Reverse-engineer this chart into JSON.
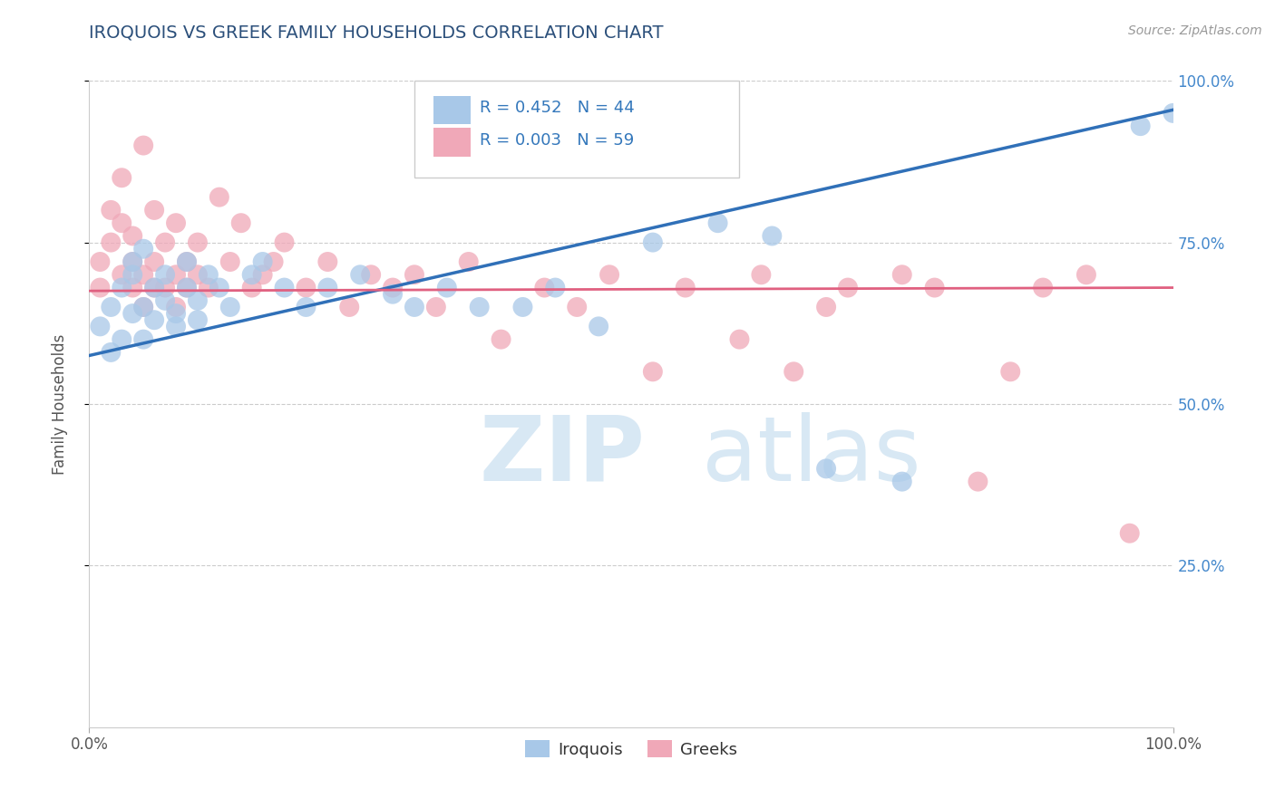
{
  "title": "IROQUOIS VS GREEK FAMILY HOUSEHOLDS CORRELATION CHART",
  "source": "Source: ZipAtlas.com",
  "ylabel": "Family Households",
  "xlim": [
    0,
    1.0
  ],
  "ylim": [
    0,
    1.0
  ],
  "blue_R": 0.452,
  "blue_N": 44,
  "pink_R": 0.003,
  "pink_N": 59,
  "iroquois_color": "#a8c8e8",
  "greeks_color": "#f0a8b8",
  "blue_line_color": "#3070b8",
  "pink_line_color": "#e06080",
  "watermark_color": "#d8e8f4",
  "title_color": "#2b4f7a",
  "legend_R_color": "#3377bb",
  "blue_line_slope": 0.38,
  "blue_line_intercept": 0.575,
  "pink_line_slope": 0.005,
  "pink_line_intercept": 0.675,
  "iroquois_x": [
    0.01,
    0.02,
    0.02,
    0.03,
    0.03,
    0.04,
    0.04,
    0.04,
    0.05,
    0.05,
    0.05,
    0.06,
    0.06,
    0.07,
    0.07,
    0.08,
    0.08,
    0.09,
    0.09,
    0.1,
    0.1,
    0.11,
    0.12,
    0.13,
    0.15,
    0.16,
    0.18,
    0.2,
    0.22,
    0.25,
    0.28,
    0.3,
    0.33,
    0.36,
    0.4,
    0.43,
    0.47,
    0.52,
    0.58,
    0.63,
    0.68,
    0.75,
    0.97,
    1.0
  ],
  "iroquois_y": [
    0.62,
    0.65,
    0.58,
    0.6,
    0.68,
    0.64,
    0.7,
    0.72,
    0.6,
    0.65,
    0.74,
    0.63,
    0.68,
    0.66,
    0.7,
    0.64,
    0.62,
    0.68,
    0.72,
    0.66,
    0.63,
    0.7,
    0.68,
    0.65,
    0.7,
    0.72,
    0.68,
    0.65,
    0.68,
    0.7,
    0.67,
    0.65,
    0.68,
    0.65,
    0.65,
    0.68,
    0.62,
    0.75,
    0.78,
    0.76,
    0.4,
    0.38,
    0.93,
    0.95
  ],
  "greeks_x": [
    0.01,
    0.01,
    0.02,
    0.02,
    0.03,
    0.03,
    0.03,
    0.04,
    0.04,
    0.04,
    0.05,
    0.05,
    0.05,
    0.06,
    0.06,
    0.06,
    0.07,
    0.07,
    0.08,
    0.08,
    0.08,
    0.09,
    0.09,
    0.1,
    0.1,
    0.11,
    0.12,
    0.13,
    0.14,
    0.15,
    0.16,
    0.17,
    0.18,
    0.2,
    0.22,
    0.24,
    0.26,
    0.28,
    0.3,
    0.32,
    0.35,
    0.38,
    0.42,
    0.45,
    0.48,
    0.52,
    0.55,
    0.6,
    0.62,
    0.65,
    0.68,
    0.7,
    0.75,
    0.78,
    0.82,
    0.85,
    0.88,
    0.92,
    0.96
  ],
  "greeks_y": [
    0.68,
    0.72,
    0.75,
    0.8,
    0.7,
    0.78,
    0.85,
    0.68,
    0.72,
    0.76,
    0.65,
    0.7,
    0.9,
    0.68,
    0.72,
    0.8,
    0.68,
    0.75,
    0.65,
    0.7,
    0.78,
    0.68,
    0.72,
    0.7,
    0.75,
    0.68,
    0.82,
    0.72,
    0.78,
    0.68,
    0.7,
    0.72,
    0.75,
    0.68,
    0.72,
    0.65,
    0.7,
    0.68,
    0.7,
    0.65,
    0.72,
    0.6,
    0.68,
    0.65,
    0.7,
    0.55,
    0.68,
    0.6,
    0.7,
    0.55,
    0.65,
    0.68,
    0.7,
    0.68,
    0.38,
    0.55,
    0.68,
    0.7,
    0.3
  ]
}
